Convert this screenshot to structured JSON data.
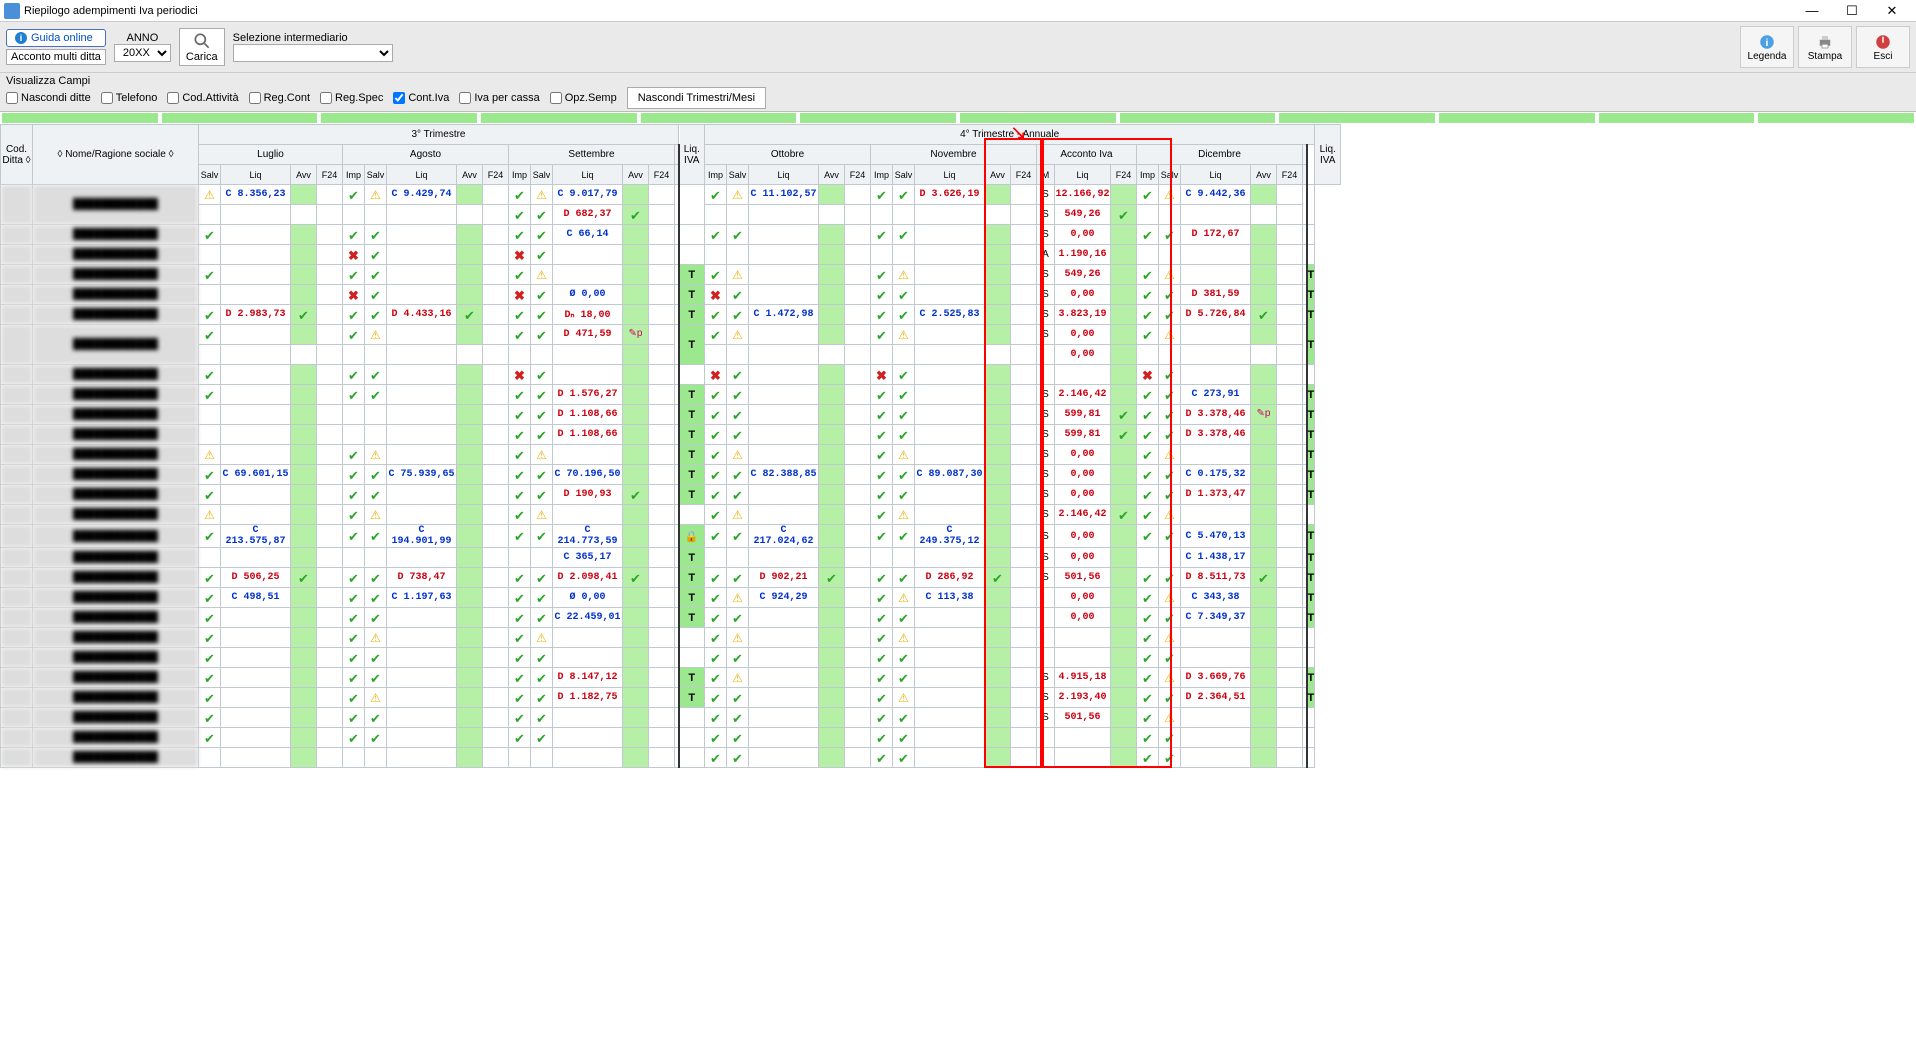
{
  "window": {
    "title": "Riepilogo adempimenti Iva periodici"
  },
  "toolbar": {
    "guida": "Guida online",
    "anno_label": "ANNO",
    "anno_value": "20XX",
    "acconto_btn": "Acconto multi ditta",
    "carica": "Carica",
    "sel_inter": "Selezione intermediario"
  },
  "rbtns": {
    "legenda": "Legenda",
    "stampa": "Stampa",
    "esci": "Esci"
  },
  "filters": {
    "title": "Visualizza Campi",
    "nascondi_ditte": "Nascondi ditte",
    "telefono": "Telefono",
    "cod_att": "Cod.Attività",
    "reg_cont": "Reg.Cont",
    "reg_spec": "Reg.Spec",
    "cont_iva": "Cont.Iva",
    "iva_cassa": "Iva per cassa",
    "opz_semp": "Opz.Semp",
    "nascondi_tri": "Nascondi Trimestri/Mesi"
  },
  "headers": {
    "cod_ditta": "Cod. Ditta",
    "nome": "Nome/Ragione sociale",
    "tri3": "3° Trimestre",
    "tri4": "4° Trimestre - Annuale",
    "luglio": "Luglio",
    "agosto": "Agosto",
    "settembre": "Settembre",
    "ottobre": "Ottobre",
    "novembre": "Novembre",
    "dicembre": "Dicembre",
    "acconto": "Acconto Iva",
    "liq_iva": "Liq. IVA",
    "salv": "Salv",
    "liq": "Liq",
    "avv": "Avv",
    "f24": "F24",
    "imp": "Imp",
    "m": "M"
  },
  "icons": {
    "check": "✔",
    "warn": "⚠",
    "x": "✖",
    "lock": "🔒",
    "zero": "Ø"
  },
  "rows": [
    {
      "lug": {
        "s": "w",
        "t": "C",
        "v": "8.356,23"
      },
      "ago": {
        "i": "c",
        "s": "w",
        "t": "C",
        "v": "9.429,74"
      },
      "set": [
        {
          "i": "c",
          "s": "w",
          "t": "C",
          "v": "9.017,79"
        },
        {
          "i": "c",
          "s": "c",
          "t": "D",
          "v": "682,37",
          "av": "c"
        }
      ],
      "ott": {
        "i": "c",
        "s": "w",
        "t": "C",
        "v": "11.102,57"
      },
      "nov": {
        "i": "c",
        "s": "c",
        "t": "D",
        "v": "3.626,19"
      },
      "acc": [
        {
          "m": "S",
          "v": "12.166,92"
        },
        {
          "m": "S",
          "v": "549,26",
          "f": "c"
        }
      ],
      "dic": {
        "i": "c",
        "s": "w",
        "t": "C",
        "v": "9.442,36"
      }
    },
    {
      "lug": {
        "s": "c"
      },
      "ago": {
        "i": "c",
        "s": "c"
      },
      "set": [
        {
          "i": "c",
          "s": "c",
          "t": "C",
          "v": "66,14"
        }
      ],
      "ott": {
        "i": "c",
        "s": "c"
      },
      "nov": {
        "i": "c",
        "s": "c"
      },
      "acc": [
        {
          "m": "S",
          "v": "0,00"
        }
      ],
      "dic": {
        "i": "c",
        "s": "c",
        "t": "D",
        "v": "172,67"
      }
    },
    {
      "lug": {},
      "ago": {
        "i": "x",
        "s": "c"
      },
      "set": [
        {
          "i": "x",
          "s": "c"
        }
      ],
      "ott": {},
      "nov": {},
      "acc": [
        {
          "m": "A",
          "v": "1.190,16"
        }
      ],
      "dic": {}
    },
    {
      "lug": {
        "s": "c"
      },
      "ago": {
        "i": "c",
        "s": "c"
      },
      "set": [
        {
          "i": "c",
          "s": "w"
        }
      ],
      "T": "T",
      "ott": {
        "i": "c",
        "s": "w"
      },
      "nov": {
        "i": "c",
        "s": "w"
      },
      "acc": [
        {
          "m": "S",
          "v": "549,26"
        }
      ],
      "dic": {
        "i": "c",
        "s": "w"
      },
      "T4": "T"
    },
    {
      "lug": {},
      "ago": {
        "i": "x",
        "s": "c"
      },
      "set": [
        {
          "i": "x",
          "s": "c",
          "t": "Ø",
          "v": "0,00"
        }
      ],
      "T": "T",
      "ott": {
        "i": "x",
        "s": "c"
      },
      "nov": {
        "i": "c",
        "s": "c"
      },
      "acc": [
        {
          "m": "S",
          "v": "0,00"
        }
      ],
      "dic": {
        "i": "c",
        "s": "c",
        "t": "D",
        "v": "381,59"
      },
      "T4": "T"
    },
    {
      "lug": {
        "s": "c",
        "t": "D",
        "v": "2.983,73",
        "av": "c"
      },
      "ago": {
        "i": "c",
        "s": "c",
        "t": "D",
        "v": "4.433,16",
        "av": "c"
      },
      "set": [
        {
          "i": "c",
          "s": "c",
          "t": "Dₙ",
          "v": "18,00"
        }
      ],
      "T": "T",
      "ott": {
        "i": "c",
        "s": "c",
        "t": "C",
        "v": "1.472,98"
      },
      "nov": {
        "i": "c",
        "s": "c",
        "t": "C",
        "v": "2.525,83"
      },
      "acc": [
        {
          "m": "S",
          "v": "3.823,19"
        }
      ],
      "dic": {
        "i": "c",
        "s": "c",
        "t": "D",
        "v": "5.726,84",
        "av": "c"
      },
      "T4": "T"
    },
    {
      "lug": {
        "s": "c"
      },
      "ago": {
        "i": "c",
        "s": "w"
      },
      "set": [
        {
          "i": "c",
          "s": "c",
          "t": "D",
          "v": "471,59",
          "av": "p"
        }
      ],
      "T": "T",
      "ott": {
        "i": "c",
        "s": "w"
      },
      "nov": {
        "i": "c",
        "s": "w"
      },
      "acc": [
        {
          "m": "S",
          "v": "0,00"
        },
        {
          "v": "0,00"
        }
      ],
      "dic": {
        "i": "c",
        "s": "w"
      },
      "T4": "T"
    },
    {
      "lug": {
        "s": "c"
      },
      "ago": {
        "i": "c",
        "s": "c"
      },
      "set": [
        {
          "i": "x",
          "s": "c"
        }
      ],
      "ott": {
        "i": "x",
        "s": "c"
      },
      "nov": {
        "i": "x",
        "s": "c"
      },
      "acc": [],
      "dic": {
        "i": "x",
        "s": "c"
      }
    },
    {
      "lug": {
        "s": "c"
      },
      "ago": {
        "i": "c",
        "s": "c"
      },
      "set": [
        {
          "i": "c",
          "s": "c",
          "t": "D",
          "v": "1.576,27"
        }
      ],
      "T": "T",
      "ott": {
        "i": "c",
        "s": "c"
      },
      "nov": {
        "i": "c",
        "s": "c"
      },
      "acc": [
        {
          "m": "S",
          "v": "2.146,42"
        }
      ],
      "dic": {
        "i": "c",
        "s": "c",
        "t": "C",
        "v": "273,91"
      },
      "T4": "T"
    },
    {
      "lug": {},
      "ago": {},
      "set": [
        {
          "i": "c",
          "s": "c",
          "t": "D",
          "v": "1.108,66"
        }
      ],
      "T": "T",
      "ott": {
        "i": "c",
        "s": "c"
      },
      "nov": {
        "i": "c",
        "s": "c"
      },
      "acc": [
        {
          "m": "S",
          "v": "599,81",
          "f": "c"
        }
      ],
      "dic": {
        "i": "c",
        "s": "c",
        "t": "D",
        "v": "3.378,46",
        "av": "p"
      },
      "T4": "T"
    },
    {
      "lug": {},
      "ago": {},
      "set": [
        {
          "i": "c",
          "s": "c",
          "t": "D",
          "v": "1.108,66"
        }
      ],
      "T": "T",
      "ott": {
        "i": "c",
        "s": "c"
      },
      "nov": {
        "i": "c",
        "s": "c"
      },
      "acc": [
        {
          "m": "S",
          "v": "599,81",
          "f": "c"
        }
      ],
      "dic": {
        "i": "c",
        "s": "c",
        "t": "D",
        "v": "3.378,46"
      },
      "T4": "T"
    },
    {
      "lug": {
        "s": "w"
      },
      "ago": {
        "i": "c",
        "s": "w"
      },
      "set": [
        {
          "i": "c",
          "s": "w"
        }
      ],
      "T": "T",
      "ott": {
        "i": "c",
        "s": "w"
      },
      "nov": {
        "i": "c",
        "s": "w"
      },
      "acc": [
        {
          "m": "S",
          "v": "0,00"
        }
      ],
      "dic": {
        "i": "c",
        "s": "w"
      },
      "T4": "T"
    },
    {
      "lug": {
        "s": "c",
        "t": "C",
        "v": "69.601,15"
      },
      "ago": {
        "i": "c",
        "s": "c",
        "t": "C",
        "v": "75.939,65"
      },
      "set": [
        {
          "i": "c",
          "s": "c",
          "t": "C",
          "v": "70.196,50"
        }
      ],
      "T": "T",
      "ott": {
        "i": "c",
        "s": "c",
        "t": "C",
        "v": "82.388,85"
      },
      "nov": {
        "i": "c",
        "s": "c",
        "t": "C",
        "v": "89.087,30"
      },
      "acc": [
        {
          "m": "S",
          "v": "0,00"
        }
      ],
      "dic": {
        "i": "c",
        "s": "c",
        "t": "C",
        "v": "0.175,32"
      },
      "T4": "T"
    },
    {
      "lug": {
        "s": "c"
      },
      "ago": {
        "i": "c",
        "s": "c"
      },
      "set": [
        {
          "i": "c",
          "s": "c",
          "t": "D",
          "v": "190,93",
          "av": "c"
        }
      ],
      "T": "T",
      "ott": {
        "i": "c",
        "s": "c"
      },
      "nov": {
        "i": "c",
        "s": "c"
      },
      "acc": [
        {
          "m": "S",
          "v": "0,00"
        }
      ],
      "dic": {
        "i": "c",
        "s": "c",
        "t": "D",
        "v": "1.373,47"
      },
      "T4": "T"
    },
    {
      "lug": {
        "s": "w"
      },
      "ago": {
        "i": "c",
        "s": "w"
      },
      "set": [
        {
          "i": "c",
          "s": "w"
        }
      ],
      "ott": {
        "i": "c",
        "s": "w"
      },
      "nov": {
        "i": "c",
        "s": "w"
      },
      "acc": [
        {
          "m": "S",
          "v": "2.146,42",
          "f": "c"
        }
      ],
      "dic": {
        "i": "c",
        "s": "w"
      }
    },
    {
      "lug": {
        "s": "c",
        "t": "C",
        "v": "213.575,87"
      },
      "ago": {
        "i": "c",
        "s": "c",
        "t": "C",
        "v": "194.901,99"
      },
      "set": [
        {
          "i": "c",
          "s": "c",
          "t": "C",
          "v": "214.773,59"
        }
      ],
      "T": "🔒",
      "ott": {
        "i": "c",
        "s": "c",
        "t": "C",
        "v": "217.024,62"
      },
      "nov": {
        "i": "c",
        "s": "c",
        "t": "C",
        "v": "249.375,12"
      },
      "acc": [
        {
          "m": "S",
          "v": "0,00"
        }
      ],
      "dic": {
        "i": "c",
        "s": "c",
        "t": "C",
        "v": "5.470,13"
      },
      "T4": "T"
    },
    {
      "lug": {},
      "ago": {},
      "set": [
        {
          "t": "C",
          "v": "365,17"
        }
      ],
      "T": "T",
      "ott": {},
      "nov": {},
      "acc": [
        {
          "m": "S",
          "v": "0,00"
        }
      ],
      "dic": {
        "t": "C",
        "v": "1.438,17"
      },
      "T4": "T"
    },
    {
      "lug": {
        "s": "c",
        "t": "D",
        "v": "506,25",
        "av": "c"
      },
      "ago": {
        "i": "c",
        "s": "c",
        "t": "D",
        "v": "738,47"
      },
      "set": [
        {
          "i": "c",
          "s": "c",
          "t": "D",
          "v": "2.098,41",
          "av": "c"
        }
      ],
      "T": "T",
      "ott": {
        "i": "c",
        "s": "c",
        "t": "D",
        "v": "902,21",
        "av": "c"
      },
      "nov": {
        "i": "c",
        "s": "c",
        "t": "D",
        "v": "286,92",
        "av": "c"
      },
      "acc": [
        {
          "m": "S",
          "v": "501,56"
        }
      ],
      "dic": {
        "i": "c",
        "s": "c",
        "t": "D",
        "v": "8.511,73",
        "av": "c"
      },
      "T4": "T"
    },
    {
      "lug": {
        "s": "c",
        "t": "C",
        "v": "498,51"
      },
      "ago": {
        "i": "c",
        "s": "c",
        "t": "C",
        "v": "1.197,63"
      },
      "set": [
        {
          "i": "c",
          "s": "c",
          "t": "Ø",
          "v": "0,00"
        }
      ],
      "T": "T",
      "ott": {
        "i": "c",
        "s": "w",
        "t": "C",
        "v": "924,29"
      },
      "nov": {
        "i": "c",
        "s": "w",
        "t": "C",
        "v": "113,38"
      },
      "acc": [
        {
          "v": "0,00"
        }
      ],
      "dic": {
        "i": "c",
        "s": "w",
        "t": "C",
        "v": "343,38"
      },
      "T4": "T"
    },
    {
      "lug": {
        "s": "c"
      },
      "ago": {
        "i": "c",
        "s": "c"
      },
      "set": [
        {
          "i": "c",
          "s": "c",
          "t": "C",
          "v": "22.459,01"
        }
      ],
      "T": "T",
      "ott": {
        "i": "c",
        "s": "c"
      },
      "nov": {
        "i": "c",
        "s": "c"
      },
      "acc": [
        {
          "v": "0,00"
        }
      ],
      "dic": {
        "i": "c",
        "s": "c",
        "t": "C",
        "v": "7.349,37"
      },
      "T4": "T"
    },
    {
      "lug": {
        "s": "c"
      },
      "ago": {
        "i": "c",
        "s": "w"
      },
      "set": [
        {
          "i": "c",
          "s": "w"
        }
      ],
      "ott": {
        "i": "c",
        "s": "w"
      },
      "nov": {
        "i": "c",
        "s": "w"
      },
      "acc": [],
      "dic": {
        "i": "c",
        "s": "w"
      }
    },
    {
      "lug": {
        "s": "c"
      },
      "ago": {
        "i": "c",
        "s": "c"
      },
      "set": [
        {
          "i": "c",
          "s": "c"
        }
      ],
      "ott": {
        "i": "c",
        "s": "c"
      },
      "nov": {
        "i": "c",
        "s": "c"
      },
      "acc": [],
      "dic": {
        "i": "c",
        "s": "c"
      }
    },
    {
      "lug": {
        "s": "c"
      },
      "ago": {
        "i": "c",
        "s": "c"
      },
      "set": [
        {
          "i": "c",
          "s": "c",
          "t": "D",
          "v": "8.147,12"
        }
      ],
      "T": "T",
      "ott": {
        "i": "c",
        "s": "w"
      },
      "nov": {
        "i": "c",
        "s": "c"
      },
      "acc": [
        {
          "m": "S",
          "v": "4.915,18"
        }
      ],
      "dic": {
        "i": "c",
        "s": "w",
        "t": "D",
        "v": "3.669,76"
      },
      "T4": "T"
    },
    {
      "lug": {
        "s": "c"
      },
      "ago": {
        "i": "c",
        "s": "w"
      },
      "set": [
        {
          "i": "c",
          "s": "c",
          "t": "D",
          "v": "1.182,75"
        }
      ],
      "T": "T",
      "ott": {
        "i": "c",
        "s": "c"
      },
      "nov": {
        "i": "c",
        "s": "w"
      },
      "acc": [
        {
          "m": "S",
          "v": "2.193,40"
        }
      ],
      "dic": {
        "i": "c",
        "s": "c",
        "t": "D",
        "v": "2.364,51"
      },
      "T4": "T"
    },
    {
      "lug": {
        "s": "c"
      },
      "ago": {
        "i": "c",
        "s": "c"
      },
      "set": [
        {
          "i": "c",
          "s": "c"
        }
      ],
      "ott": {
        "i": "c",
        "s": "c"
      },
      "nov": {
        "i": "c",
        "s": "c"
      },
      "acc": [
        {
          "m": "S",
          "v": "501,56"
        }
      ],
      "dic": {
        "i": "c",
        "s": "w"
      }
    },
    {
      "lug": {
        "s": "c"
      },
      "ago": {
        "i": "c",
        "s": "c"
      },
      "set": [
        {
          "i": "c",
          "s": "c"
        }
      ],
      "ott": {
        "i": "c",
        "s": "c"
      },
      "nov": {
        "i": "c",
        "s": "c"
      },
      "acc": [],
      "dic": {
        "i": "c",
        "s": "c"
      }
    },
    {
      "lug": {},
      "ago": {},
      "set": [],
      "ott": {
        "i": "c",
        "s": "c"
      },
      "nov": {
        "i": "c",
        "s": "c"
      },
      "acc": [],
      "dic": {
        "i": "c",
        "s": "c"
      }
    }
  ]
}
